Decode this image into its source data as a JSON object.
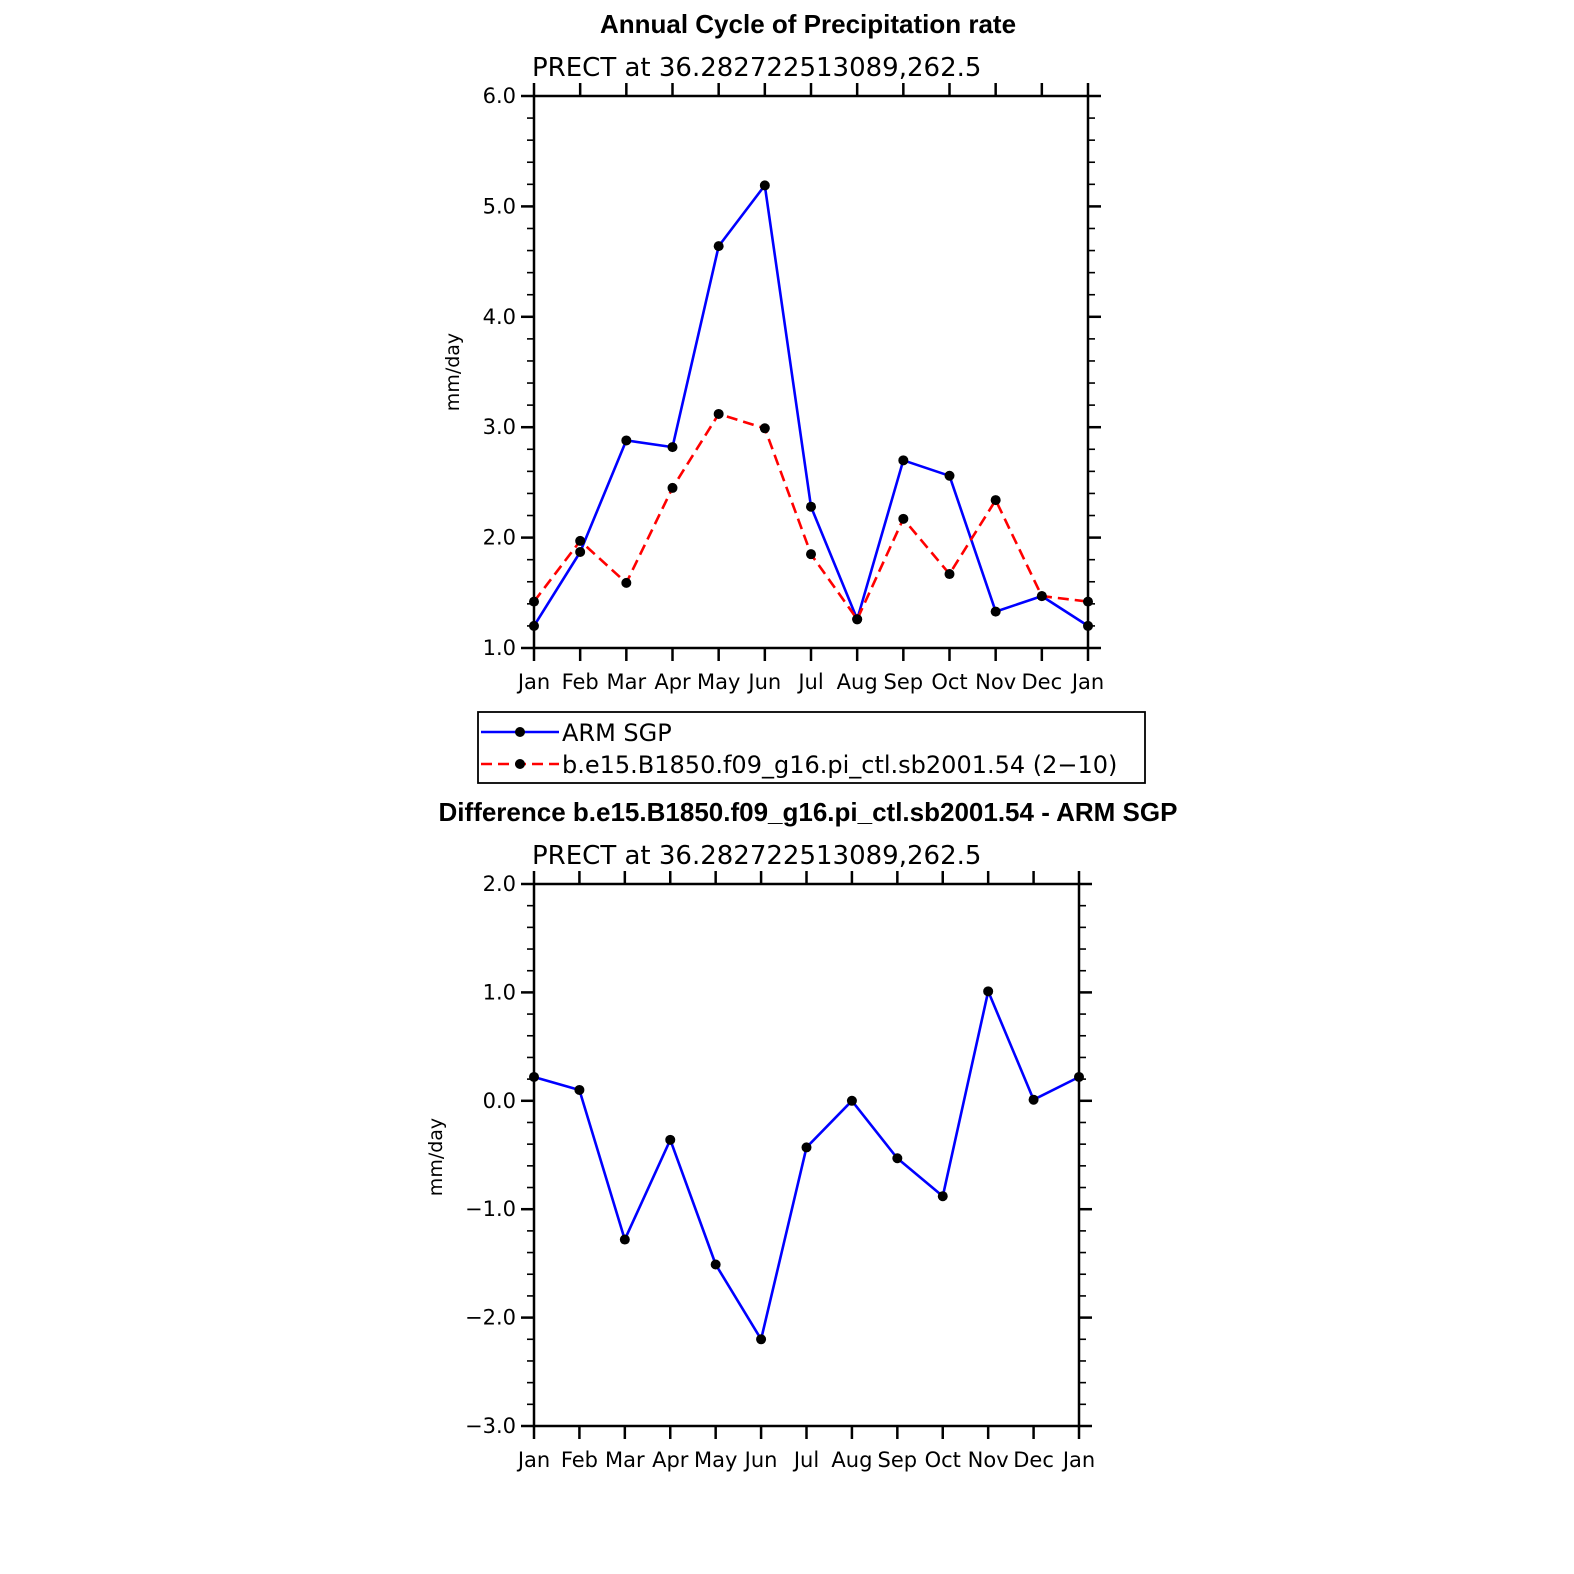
{
  "chart_data": [
    {
      "type": "line",
      "title": "Annual Cycle of Precipitation rate",
      "subtitle": "PRECT at 36.282722513089,262.5",
      "xlabel": "",
      "ylabel": "mm/day",
      "categories": [
        "Jan",
        "Feb",
        "Mar",
        "Apr",
        "May",
        "Jun",
        "Jul",
        "Aug",
        "Sep",
        "Oct",
        "Nov",
        "Dec",
        "Jan"
      ],
      "ylim": [
        1.0,
        6.0
      ],
      "yticks": [
        "1.0",
        "2.0",
        "3.0",
        "4.0",
        "5.0",
        "6.0"
      ],
      "series": [
        {
          "name": "ARM SGP",
          "color": "#0000ff",
          "dash": "solid",
          "values": [
            1.2,
            1.87,
            2.88,
            2.82,
            4.64,
            5.19,
            2.28,
            1.26,
            2.7,
            2.56,
            1.33,
            1.47,
            1.2
          ]
        },
        {
          "name": "b.e15.B1850.f09_g16.pi_ctl.sb2001.54 (2−10)",
          "color": "#ff0000",
          "dash": "dashed",
          "values": [
            1.42,
            1.97,
            1.59,
            2.45,
            3.12,
            2.99,
            1.85,
            1.26,
            2.17,
            1.67,
            2.34,
            1.47,
            1.42
          ]
        }
      ],
      "legend": "below"
    },
    {
      "type": "line",
      "title": "Difference b.e15.B1850.f09_g16.pi_ctl.sb2001.54 - ARM SGP",
      "subtitle": "PRECT at 36.282722513089,262.5",
      "xlabel": "",
      "ylabel": "mm/day",
      "categories": [
        "Jan",
        "Feb",
        "Mar",
        "Apr",
        "May",
        "Jun",
        "Jul",
        "Aug",
        "Sep",
        "Oct",
        "Nov",
        "Dec",
        "Jan"
      ],
      "ylim": [
        -3.0,
        2.0
      ],
      "yticks": [
        "−3.0",
        "−2.0",
        "−1.0",
        "0.0",
        "1.0",
        "2.0"
      ],
      "series": [
        {
          "name": "Difference",
          "color": "#0000ff",
          "dash": "solid",
          "values": [
            0.22,
            0.1,
            -1.28,
            -0.36,
            -1.51,
            -2.2,
            -0.43,
            0.0,
            -0.53,
            -0.88,
            1.01,
            0.01,
            0.22
          ]
        }
      ]
    }
  ]
}
